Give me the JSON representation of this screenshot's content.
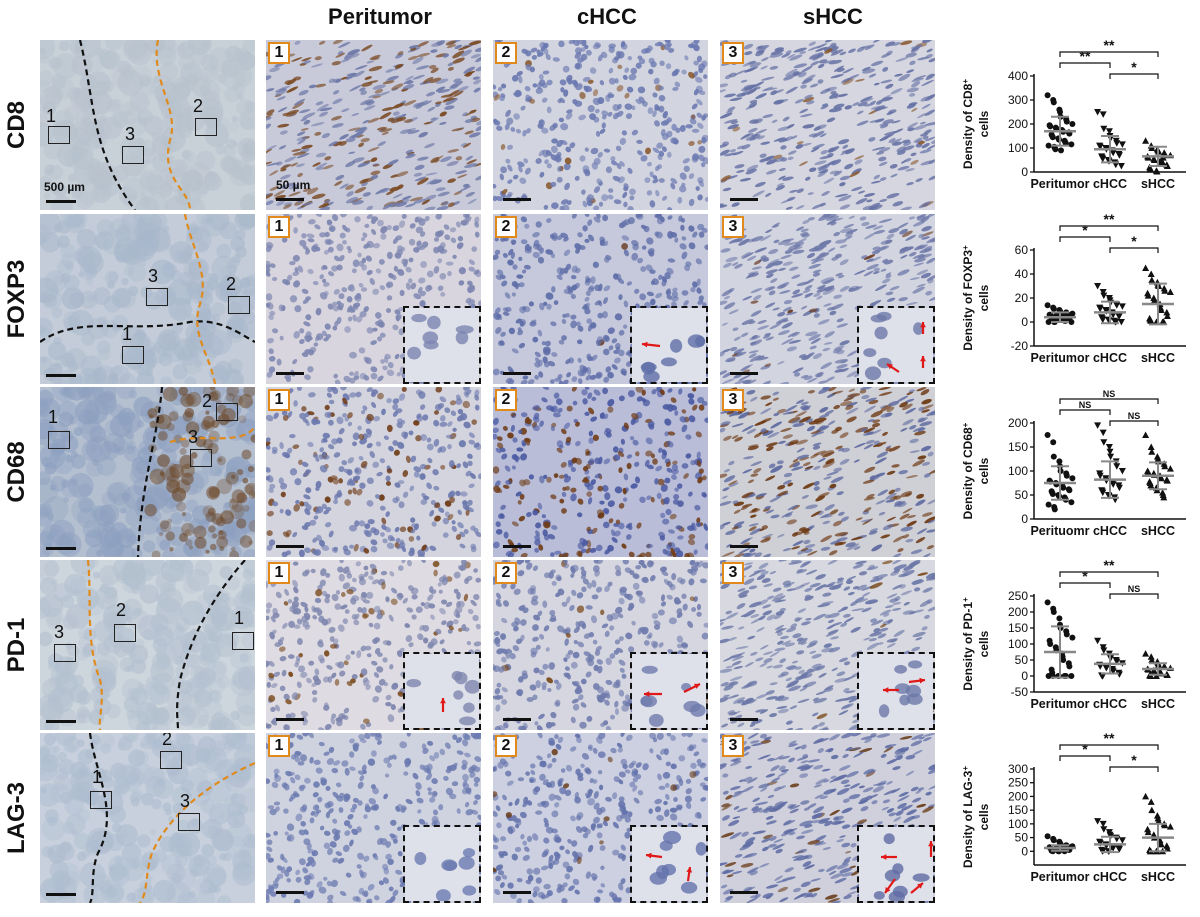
{
  "column_headers": [
    "Peritumor",
    "cHCC",
    "sHCC"
  ],
  "rows": [
    {
      "marker": "CD8",
      "lowmag_scale": "500 µm",
      "micro_scale": "50 µm",
      "roi_labels": [
        "1",
        "3",
        "2"
      ],
      "panel_numbers": [
        "1",
        "2",
        "3"
      ],
      "insets": false,
      "tissue": {
        "low": [
          "#b7c2cd",
          "#c8d0d8"
        ],
        "p": [
          "#c9cad9",
          "#6f7aa8",
          "#7a4a24"
        ],
        "c": [
          "#d2d4df",
          "#6a78b0",
          "#8a5a30"
        ],
        "s": [
          "#d5d6e0",
          "#6571a4",
          "#8a5a30"
        ]
      },
      "brown_density": [
        0.35,
        0.04,
        0.03
      ]
    },
    {
      "marker": "FOXP3",
      "lowmag_scale": "",
      "micro_scale": "",
      "roi_labels": [
        "3",
        "2",
        "1"
      ],
      "panel_numbers": [
        "1",
        "2",
        "3"
      ],
      "insets": true,
      "tissue": {
        "low": [
          "#a9b8cc",
          "#c3ccd8"
        ],
        "p": [
          "#d8d5de",
          "#7c85b0",
          "#5a3a20"
        ],
        "c": [
          "#c6c9dc",
          "#5f6ea8",
          "#6a3a20"
        ],
        "s": [
          "#d2d4e0",
          "#6d78a8",
          "#6a3a20"
        ]
      },
      "brown_density": [
        0.0,
        0.01,
        0.02
      ]
    },
    {
      "marker": "CD68",
      "lowmag_scale": "",
      "micro_scale": "",
      "roi_labels": [
        "1",
        "3",
        "2"
      ],
      "panel_numbers": [
        "1",
        "2",
        "3"
      ],
      "insets": false,
      "tissue": {
        "low": [
          "#8da0c0",
          "#b4bfd0"
        ],
        "p": [
          "#d4d4df",
          "#6b78ad",
          "#6e3a14"
        ],
        "c": [
          "#b9bdd8",
          "#4b5aa2",
          "#6e3a14"
        ],
        "s": [
          "#cfcfd6",
          "#5d6aa0",
          "#6e3a14"
        ]
      },
      "brown_density": [
        0.18,
        0.32,
        0.45
      ]
    },
    {
      "marker": "PD-1",
      "lowmag_scale": "",
      "micro_scale": "",
      "roi_labels": [
        "3",
        "2",
        "1"
      ],
      "panel_numbers": [
        "1",
        "2",
        "3"
      ],
      "insets": true,
      "tissue": {
        "low": [
          "#b3c0cf",
          "#cdd5dd"
        ],
        "p": [
          "#dedbe2",
          "#7e86ae",
          "#7a4a1c"
        ],
        "c": [
          "#d6d6e0",
          "#6e7aac",
          "#7a4a1c"
        ],
        "s": [
          "#d8d9e0",
          "#6c78a8",
          "#7a4a1c"
        ]
      },
      "brown_density": [
        0.1,
        0.02,
        0.04
      ]
    },
    {
      "marker": "LAG-3",
      "lowmag_scale": "",
      "micro_scale": "",
      "roi_labels": [
        "1",
        "2",
        "3"
      ],
      "panel_numbers": [
        "1",
        "2",
        "3"
      ],
      "insets": true,
      "tissue": {
        "low": [
          "#aebdd0",
          "#c7d0dc"
        ],
        "p": [
          "#cfd2df",
          "#6b7ab0",
          "#6a3e1c"
        ],
        "c": [
          "#cdd0e0",
          "#6473ac",
          "#6a3e1c"
        ],
        "s": [
          "#cfd0dc",
          "#5f6ca4",
          "#6a3e1c"
        ]
      },
      "brown_density": [
        0.0,
        0.03,
        0.12
      ]
    }
  ],
  "chart_data": [
    {
      "type": "scatter",
      "ylabel_parts": [
        "Density of CD8",
        "+",
        "cells"
      ],
      "categories": [
        "Peritumor",
        "cHCC",
        "sHCC"
      ],
      "ylim": [
        0,
        400
      ],
      "yticks": [
        0,
        100,
        200,
        300,
        400
      ],
      "markers": [
        "circle",
        "triangle-down",
        "triangle-up"
      ],
      "summary": [
        {
          "mean": 170,
          "sd": 60
        },
        {
          "mean": 95,
          "sd": 55
        },
        {
          "mean": 65,
          "sd": 40
        }
      ],
      "points": [
        [
          320,
          300,
          290,
          260,
          250,
          230,
          220,
          210,
          200,
          195,
          190,
          185,
          180,
          175,
          170,
          168,
          165,
          160,
          155,
          150,
          145,
          140,
          135,
          130,
          125,
          120,
          115,
          110,
          105,
          100,
          95,
          90
        ],
        [
          250,
          240,
          180,
          170,
          150,
          140,
          130,
          120,
          115,
          110,
          105,
          100,
          95,
          90,
          85,
          80,
          75,
          70,
          65,
          60,
          55,
          50,
          45,
          40,
          35,
          30,
          25
        ],
        [
          130,
          110,
          100,
          95,
          90,
          85,
          80,
          75,
          70,
          65,
          60,
          55,
          50,
          45,
          40,
          35,
          30,
          25,
          20,
          15,
          10,
          5,
          2,
          40,
          60,
          70
        ]
      ],
      "comparisons": [
        {
          "from": 0,
          "to": 2,
          "label": "**",
          "level": 2
        },
        {
          "from": 0,
          "to": 1,
          "label": "**",
          "level": 1
        },
        {
          "from": 1,
          "to": 2,
          "label": "*",
          "level": 0
        }
      ]
    },
    {
      "type": "scatter",
      "ylabel_parts": [
        "Density of FOXP3",
        "+",
        "cells"
      ],
      "categories": [
        "Peritumor",
        "cHCC",
        "sHCC"
      ],
      "ylim": [
        -20,
        60
      ],
      "yticks": [
        -20,
        0,
        20,
        40,
        60
      ],
      "markers": [
        "circle",
        "triangle-down",
        "triangle-up"
      ],
      "summary": [
        {
          "mean": 4,
          "sd": 4
        },
        {
          "mean": 8,
          "sd": 9
        },
        {
          "mean": 15,
          "sd": 17
        }
      ],
      "points": [
        [
          14,
          12,
          11,
          10,
          9,
          8,
          8,
          7,
          7,
          6,
          6,
          5,
          5,
          5,
          4,
          4,
          4,
          3,
          3,
          3,
          2,
          2,
          2,
          1,
          1,
          1,
          0,
          0,
          0,
          0
        ],
        [
          30,
          25,
          22,
          20,
          18,
          16,
          15,
          14,
          13,
          12,
          11,
          10,
          9,
          8,
          7,
          6,
          5,
          5,
          4,
          3,
          2,
          2,
          1,
          1,
          0,
          0,
          0
        ],
        [
          45,
          40,
          35,
          33,
          31,
          30,
          28,
          26,
          25,
          24,
          22,
          20,
          18,
          15,
          12,
          10,
          8,
          5,
          3,
          2,
          1,
          0,
          0,
          0,
          0,
          0
        ]
      ],
      "comparisons": [
        {
          "from": 0,
          "to": 2,
          "label": "**",
          "level": 2
        },
        {
          "from": 0,
          "to": 1,
          "label": "*",
          "level": 1
        },
        {
          "from": 1,
          "to": 2,
          "label": "*",
          "level": 0
        }
      ]
    },
    {
      "type": "scatter",
      "ylabel_parts": [
        "Density of CD68",
        "+",
        "cells"
      ],
      "categories": [
        "Perituomr",
        "cHCC",
        "sHCC"
      ],
      "ylim": [
        0,
        200
      ],
      "yticks": [
        0,
        50,
        100,
        150,
        200
      ],
      "markers": [
        "circle",
        "triangle-down",
        "triangle-up"
      ],
      "summary": [
        {
          "mean": 75,
          "sd": 35
        },
        {
          "mean": 82,
          "sd": 38
        },
        {
          "mean": 90,
          "sd": 28
        }
      ],
      "points": [
        [
          175,
          160,
          130,
          120,
          110,
          100,
          95,
          90,
          85,
          80,
          78,
          75,
          72,
          70,
          68,
          65,
          62,
          60,
          58,
          55,
          52,
          50,
          48,
          45,
          42,
          40,
          35,
          30,
          25,
          20
        ],
        [
          195,
          180,
          160,
          150,
          140,
          130,
          120,
          110,
          100,
          95,
          90,
          85,
          80,
          78,
          75,
          72,
          70,
          65,
          60,
          58,
          55,
          50,
          48,
          45,
          40
        ],
        [
          175,
          150,
          140,
          130,
          125,
          120,
          115,
          110,
          105,
          100,
          98,
          95,
          92,
          90,
          88,
          85,
          82,
          80,
          78,
          75,
          70,
          65,
          60,
          55,
          50,
          45
        ]
      ],
      "comparisons": [
        {
          "from": 0,
          "to": 2,
          "label": "NS",
          "level": 2
        },
        {
          "from": 0,
          "to": 1,
          "label": "NS",
          "level": 1
        },
        {
          "from": 1,
          "to": 2,
          "label": "NS",
          "level": 0
        }
      ]
    },
    {
      "type": "scatter",
      "ylabel_parts": [
        "Density of PD-1",
        "+",
        "cells"
      ],
      "categories": [
        "Peritumor",
        "cHCC",
        "sHCC"
      ],
      "ylim": [
        -50,
        250
      ],
      "yticks": [
        -50,
        0,
        50,
        100,
        150,
        200,
        250
      ],
      "markers": [
        "circle",
        "triangle-down",
        "triangle-up"
      ],
      "summary": [
        {
          "mean": 75,
          "sd": 80
        },
        {
          "mean": 38,
          "sd": 30
        },
        {
          "mean": 22,
          "sd": 18
        }
      ],
      "points": [
        [
          230,
          210,
          200,
          180,
          160,
          150,
          140,
          130,
          120,
          110,
          100,
          90,
          80,
          70,
          60,
          50,
          40,
          30,
          20,
          10,
          0,
          0,
          0,
          0,
          0,
          0,
          0,
          0
        ],
        [
          110,
          90,
          80,
          70,
          60,
          55,
          50,
          45,
          40,
          35,
          30,
          28,
          25,
          22,
          20,
          15,
          10,
          5,
          2,
          0,
          0
        ],
        [
          70,
          60,
          50,
          45,
          40,
          35,
          30,
          28,
          25,
          22,
          20,
          18,
          15,
          12,
          10,
          8,
          5,
          3,
          2,
          1,
          0,
          0
        ]
      ],
      "comparisons": [
        {
          "from": 0,
          "to": 2,
          "label": "**",
          "level": 2
        },
        {
          "from": 0,
          "to": 1,
          "label": "*",
          "level": 1
        },
        {
          "from": 1,
          "to": 2,
          "label": "NS",
          "level": 0
        }
      ]
    },
    {
      "type": "scatter",
      "ylabel_parts": [
        "Density of LAG-3",
        "+",
        "cells"
      ],
      "categories": [
        "Peritumor",
        "cHCC",
        "sHCC"
      ],
      "ylim": [
        -50,
        300
      ],
      "yticks": [
        0,
        50,
        100,
        150,
        200,
        250,
        300
      ],
      "markers": [
        "circle",
        "triangle-down",
        "triangle-up"
      ],
      "summary": [
        {
          "mean": 12,
          "sd": 10
        },
        {
          "mean": 25,
          "sd": 28
        },
        {
          "mean": 50,
          "sd": 50
        }
      ],
      "points": [
        [
          55,
          45,
          40,
          35,
          30,
          25,
          22,
          20,
          18,
          15,
          12,
          10,
          10,
          8,
          8,
          5,
          5,
          5,
          2,
          2,
          0,
          0,
          0,
          0
        ],
        [
          110,
          100,
          80,
          70,
          60,
          55,
          50,
          45,
          40,
          35,
          30,
          25,
          20,
          18,
          15,
          12,
          10,
          8,
          5,
          2,
          0,
          0,
          0
        ],
        [
          200,
          180,
          150,
          130,
          120,
          110,
          100,
          95,
          90,
          80,
          70,
          60,
          50,
          40,
          30,
          25,
          20,
          10,
          5,
          0,
          0,
          0,
          0,
          0
        ]
      ],
      "comparisons": [
        {
          "from": 0,
          "to": 2,
          "label": "**",
          "level": 2
        },
        {
          "from": 0,
          "to": 1,
          "label": "*",
          "level": 1
        },
        {
          "from": 1,
          "to": 2,
          "label": "*",
          "level": 0
        }
      ]
    }
  ]
}
